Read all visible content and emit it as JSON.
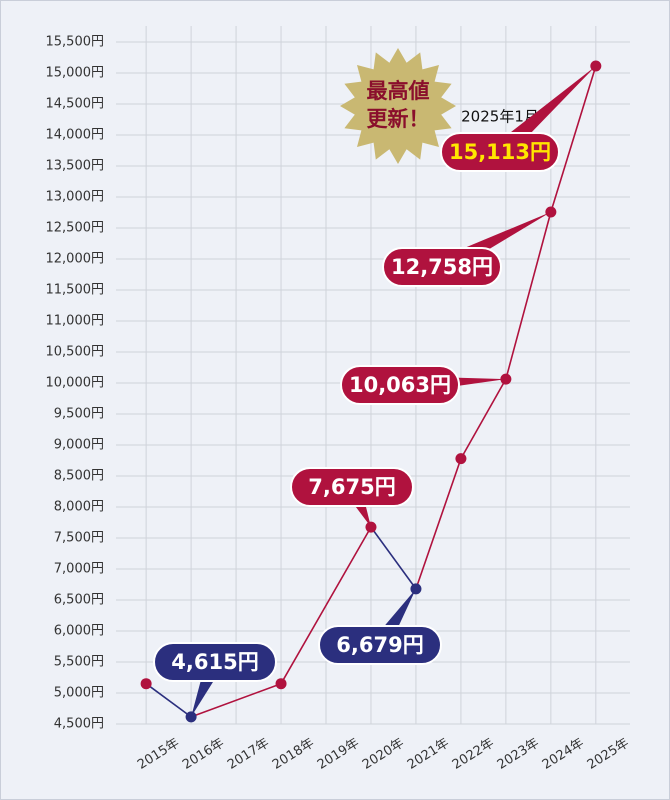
{
  "chart_data": {
    "type": "line",
    "x": [
      2015,
      2016,
      2018,
      2020,
      2021,
      2022,
      2023,
      2024,
      2025
    ],
    "values": [
      5150,
      4615,
      5150,
      7675,
      6679,
      8780,
      10063,
      12758,
      15113
    ],
    "value_labels": [
      null,
      "4,615円",
      null,
      "7,675円",
      "6,679円",
      null,
      "10,063円",
      "12,758円",
      "15,113円"
    ],
    "color": "#b0123e",
    "decrease_color": "#2b2f7e",
    "highlight_color": "#ffe600",
    "xlim": [
      2014.33,
      2025.76
    ],
    "xticks": [
      {
        "value": 2015,
        "label": "2015年"
      },
      {
        "value": 2016,
        "label": "2016年"
      },
      {
        "value": 2017,
        "label": "2017年"
      },
      {
        "value": 2018,
        "label": "2018年"
      },
      {
        "value": 2019,
        "label": "2019年"
      },
      {
        "value": 2020,
        "label": "2020年"
      },
      {
        "value": 2021,
        "label": "2021年"
      },
      {
        "value": 2022,
        "label": "2022年"
      },
      {
        "value": 2023,
        "label": "2023年"
      },
      {
        "value": 2024,
        "label": "2024年"
      },
      {
        "value": 2025,
        "label": "2025年"
      }
    ],
    "ylim": [
      4500,
      15500
    ],
    "yticks": [
      {
        "value": 4500,
        "label": "4,500円"
      },
      {
        "value": 5000,
        "label": "5,000円"
      },
      {
        "value": 5500,
        "label": "5,500円"
      },
      {
        "value": 6000,
        "label": "6,000円"
      },
      {
        "value": 6500,
        "label": "6,500円"
      },
      {
        "value": 7000,
        "label": "7,000円"
      },
      {
        "value": 7500,
        "label": "7,500円"
      },
      {
        "value": 8000,
        "label": "8,000円"
      },
      {
        "value": 8500,
        "label": "8,500円"
      },
      {
        "value": 9000,
        "label": "9,000円"
      },
      {
        "value": 9500,
        "label": "9,500円"
      },
      {
        "value": 10000,
        "label": "10,000円"
      },
      {
        "value": 10500,
        "label": "10,500円"
      },
      {
        "value": 11000,
        "label": "11,000円"
      },
      {
        "value": 11500,
        "label": "11,500円"
      },
      {
        "value": 12000,
        "label": "12,000円"
      },
      {
        "value": 12500,
        "label": "12,500円"
      },
      {
        "value": 13000,
        "label": "13,000円"
      },
      {
        "value": 13500,
        "label": "13,500円"
      },
      {
        "value": 14000,
        "label": "14,000円"
      },
      {
        "value": 14500,
        "label": "14,500円"
      },
      {
        "value": 15000,
        "label": "15,000円"
      },
      {
        "value": 15500,
        "label": "15,500円"
      }
    ],
    "grid": true,
    "annotations": {
      "badge": [
        "最高値",
        "更新！"
      ],
      "date": "2025年1月"
    }
  }
}
